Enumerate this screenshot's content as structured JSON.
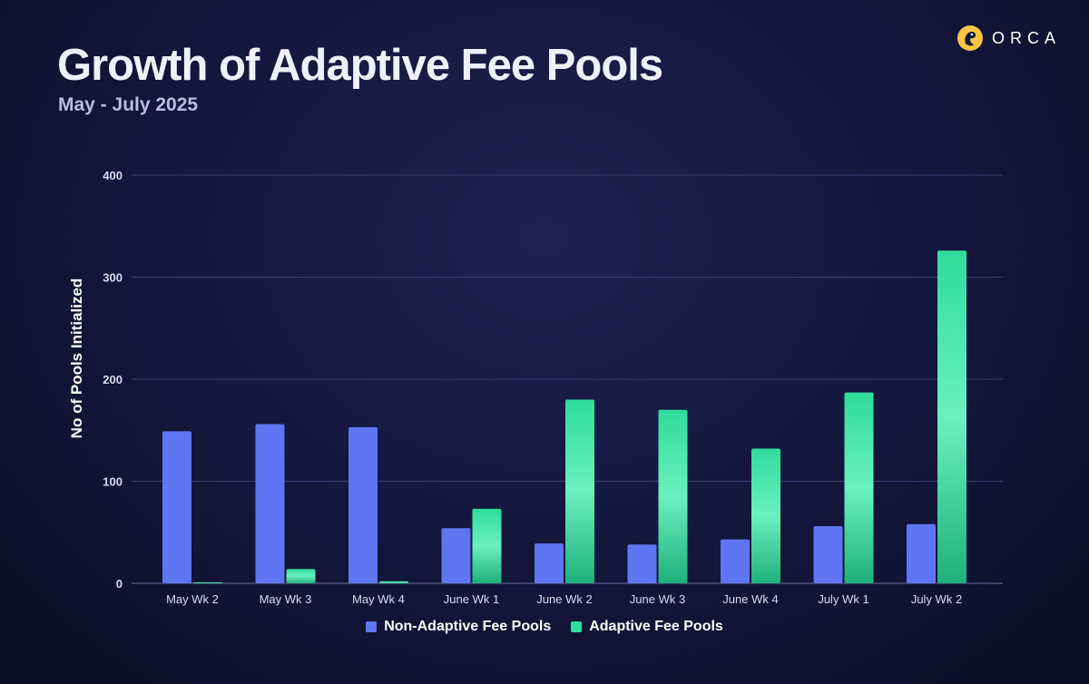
{
  "brand": {
    "name": "ORCA"
  },
  "colors": {
    "non_adaptive": "#5f76f2",
    "adaptive": "#2fdc9c",
    "grid": "#3b4070"
  },
  "chart_data": {
    "type": "bar",
    "title": "Growth of Adaptive Fee Pools",
    "subtitle": "May - July 2025",
    "xlabel": "",
    "ylabel": "No of Pools Initialized",
    "ylim": [
      0,
      400
    ],
    "yticks": [
      "0",
      "100",
      "200",
      "300",
      "400"
    ],
    "ytick_values": [
      0,
      100,
      200,
      300,
      400
    ],
    "grid": true,
    "legend_position": "bottom-center",
    "categories": [
      "May Wk 2",
      "May Wk 3",
      "May Wk 4",
      "June Wk 1",
      "June Wk 2",
      "June Wk 3",
      "June Wk 4",
      "July Wk 1",
      "July Wk 2"
    ],
    "series": [
      {
        "name": "Non-Adaptive Fee Pools",
        "values": [
          149,
          156,
          153,
          54,
          39,
          38,
          43,
          56,
          58
        ]
      },
      {
        "name": "Adaptive Fee Pools",
        "values": [
          1,
          14,
          2,
          73,
          180,
          170,
          132,
          187,
          326
        ]
      }
    ]
  }
}
